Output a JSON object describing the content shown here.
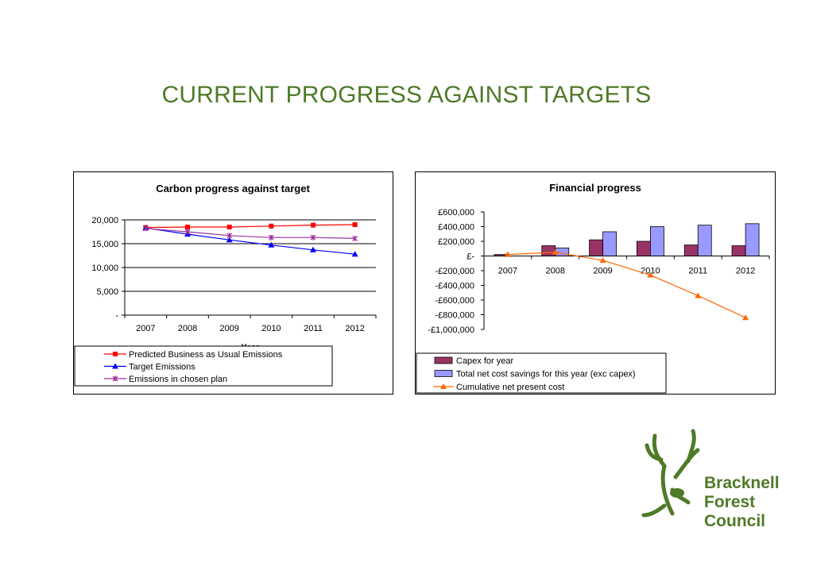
{
  "slide": {
    "title": "CURRENT PROGRESS AGAINST TARGETS"
  },
  "logo": {
    "line1": "Bracknell",
    "line2": "Forest",
    "line3": "Council",
    "color": "#4f7a28"
  },
  "chart_data": [
    {
      "type": "line",
      "title": "Carbon progress against target",
      "xlabel": "Year",
      "ylabel": "",
      "categories": [
        "2007",
        "2008",
        "2009",
        "2010",
        "2011",
        "2012"
      ],
      "ylim": [
        0,
        20000
      ],
      "yticks": [
        "-",
        "5,000",
        "10,000",
        "15,000",
        "20,000"
      ],
      "ytick_values": [
        0,
        5000,
        10000,
        15000,
        20000
      ],
      "grid": true,
      "legend_position": "bottom",
      "series": [
        {
          "name": "Predicted Business as Usual Emissions",
          "color": "#ff0000",
          "marker": "square",
          "values": [
            18400,
            18500,
            18500,
            18700,
            18900,
            19000
          ]
        },
        {
          "name": "Target Emissions",
          "color": "#0000ff",
          "marker": "triangle",
          "values": [
            18300,
            17000,
            15800,
            14700,
            13700,
            12800
          ]
        },
        {
          "name": "Emissions in chosen plan",
          "color": "#993399",
          "marker": "x",
          "values": [
            18200,
            17500,
            16700,
            16300,
            16300,
            16100
          ]
        }
      ]
    },
    {
      "type": "bar",
      "title": "Financial progress",
      "categories": [
        "2007",
        "2008",
        "2009",
        "2010",
        "2011",
        "2012"
      ],
      "ylim": [
        -1000000,
        600000
      ],
      "yticks": [
        "£600,000",
        "£400,000",
        "£200,000",
        "£-",
        "-£200,000",
        "-£400,000",
        "-£600,000",
        "-£800,000",
        "-£1,000,000"
      ],
      "ytick_values": [
        600000,
        400000,
        200000,
        0,
        -200000,
        -400000,
        -600000,
        -800000,
        -1000000
      ],
      "grid": false,
      "legend_position": "bottom",
      "series": [
        {
          "name": "Capex for year",
          "type": "bar",
          "color": "#993366",
          "values": [
            20000,
            140000,
            220000,
            200000,
            150000,
            140000
          ]
        },
        {
          "name": "Total net cost savings for this year (exc capex)",
          "type": "bar",
          "color": "#9999ff",
          "values": [
            0,
            110000,
            330000,
            400000,
            420000,
            440000
          ]
        },
        {
          "name": "Cumulative net present cost",
          "type": "line",
          "color": "#ff6600",
          "values": [
            20000,
            50000,
            -60000,
            -260000,
            -540000,
            -840000
          ]
        }
      ]
    }
  ]
}
